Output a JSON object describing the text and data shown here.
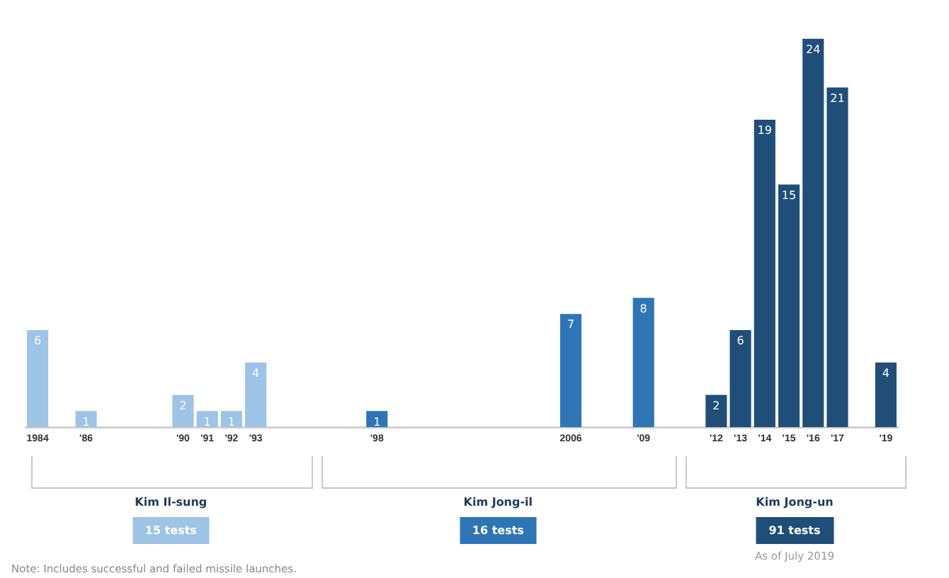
{
  "chart_data": {
    "type": "bar",
    "categories": [
      "1984",
      null,
      "'86",
      null,
      null,
      null,
      "'90",
      "'91",
      "'92",
      "'93",
      null,
      null,
      null,
      null,
      "'98",
      null,
      null,
      null,
      null,
      null,
      null,
      null,
      "2006",
      null,
      null,
      "'09",
      null,
      null,
      "'12",
      "'13",
      "'14",
      "'15",
      "'16",
      "'17",
      null,
      "'19"
    ],
    "values": [
      6,
      null,
      1,
      null,
      null,
      null,
      2,
      1,
      1,
      4,
      null,
      null,
      null,
      null,
      1,
      null,
      null,
      null,
      null,
      null,
      null,
      null,
      7,
      null,
      null,
      8,
      null,
      null,
      2,
      6,
      19,
      15,
      24,
      21,
      null,
      4
    ],
    "colors": [
      "#9dc3e6",
      null,
      "#9dc3e6",
      null,
      null,
      null,
      "#9dc3e6",
      "#9dc3e6",
      "#9dc3e6",
      "#9dc3e6",
      null,
      null,
      null,
      null,
      "#2e75b6",
      null,
      null,
      null,
      null,
      null,
      null,
      null,
      "#2e75b6",
      null,
      null,
      "#2e75b6",
      null,
      null,
      "#1f4e79",
      "#1f4e79",
      "#1f4e79",
      "#1f4e79",
      "#1f4e79",
      "#1f4e79",
      null,
      "#1f4e79"
    ],
    "data_labels": true,
    "grid": false,
    "legend": false,
    "tick_labels": "x",
    "annotations": [
      "Kim Il-sung",
      "15 tests",
      "Kim Jong-il",
      "16 tests",
      "Kim Jong-un",
      "91 tests",
      "As of July 2019",
      "Note: Includes successful and failed missile launches."
    ]
  }
}
